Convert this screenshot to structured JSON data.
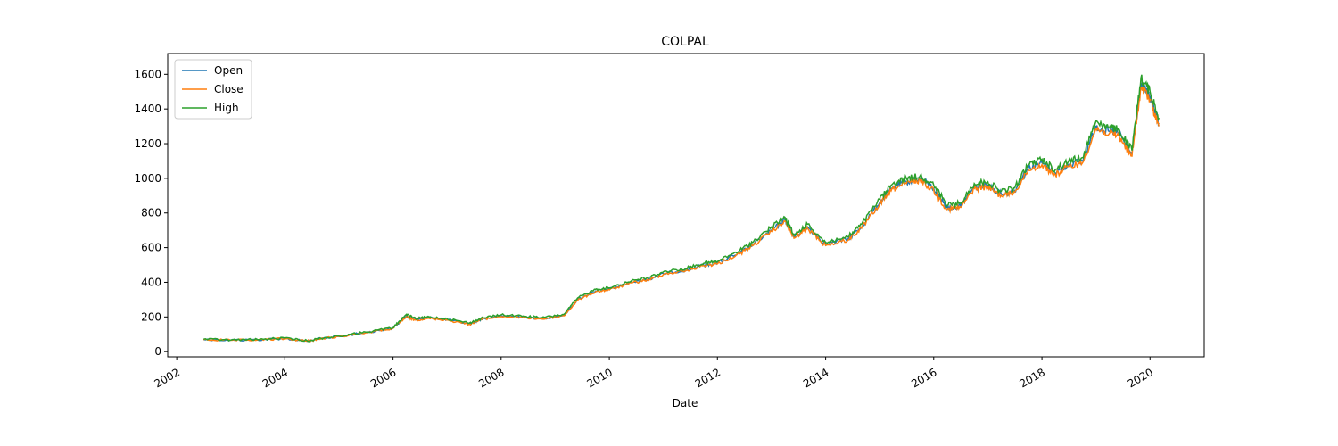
{
  "chart_data": {
    "type": "line",
    "title": "COLPAL",
    "xlabel": "Date",
    "ylabel": "",
    "x_ticks": [
      "2002",
      "2004",
      "2006",
      "2008",
      "2010",
      "2012",
      "2014",
      "2016",
      "2018",
      "2020"
    ],
    "y_ticks": [
      0,
      200,
      400,
      600,
      800,
      1000,
      1200,
      1400,
      1600
    ],
    "xlim": [
      "2001-11-01",
      "2021-01-01"
    ],
    "ylim": [
      -30,
      1720
    ],
    "grid": false,
    "legend": "top-left",
    "x": [
      "2002-07-01",
      "2003-01-01",
      "2003-07-01",
      "2004-01-01",
      "2004-06-01",
      "2004-09-01",
      "2005-01-01",
      "2005-07-01",
      "2006-01-01",
      "2006-04-01",
      "2006-06-01",
      "2006-09-01",
      "2007-01-01",
      "2007-06-01",
      "2007-09-01",
      "2008-01-01",
      "2008-06-01",
      "2008-10-01",
      "2009-03-01",
      "2009-06-01",
      "2009-10-01",
      "2010-01-01",
      "2010-06-01",
      "2010-10-01",
      "2011-01-01",
      "2011-06-01",
      "2011-10-01",
      "2012-01-01",
      "2012-06-01",
      "2012-09-01",
      "2013-01-01",
      "2013-04-01",
      "2013-06-01",
      "2013-09-01",
      "2014-01-01",
      "2014-06-01",
      "2014-09-01",
      "2015-01-01",
      "2015-04-01",
      "2015-07-01",
      "2015-10-01",
      "2016-01-01",
      "2016-04-01",
      "2016-07-01",
      "2016-10-01",
      "2017-01-01",
      "2017-04-01",
      "2017-07-01",
      "2017-10-01",
      "2018-01-01",
      "2018-04-01",
      "2018-07-01",
      "2018-10-01",
      "2019-01-01",
      "2019-04-01",
      "2019-06-01",
      "2019-09-01",
      "2019-11-01",
      "2020-01-01",
      "2020-03-01"
    ],
    "series": [
      {
        "name": "Open",
        "color": "#1f77b4",
        "values": [
          70,
          66,
          68,
          76,
          60,
          75,
          88,
          110,
          135,
          205,
          185,
          195,
          185,
          160,
          190,
          205,
          200,
          190,
          210,
          300,
          350,
          360,
          400,
          420,
          450,
          470,
          500,
          510,
          570,
          620,
          700,
          760,
          660,
          720,
          620,
          650,
          720,
          860,
          950,
          980,
          1000,
          940,
          830,
          840,
          950,
          960,
          910,
          930,
          1060,
          1090,
          1030,
          1080,
          1100,
          1300,
          1270,
          1260,
          1140,
          1540,
          1470,
          1320
        ]
      },
      {
        "name": "Close",
        "color": "#ff7f0e",
        "values": [
          69,
          65,
          67,
          75,
          60,
          74,
          87,
          109,
          134,
          200,
          182,
          192,
          182,
          158,
          188,
          202,
          197,
          188,
          207,
          296,
          346,
          356,
          396,
          416,
          446,
          466,
          496,
          506,
          565,
          615,
          693,
          752,
          654,
          712,
          612,
          644,
          712,
          850,
          940,
          970,
          990,
          930,
          820,
          832,
          940,
          950,
          900,
          920,
          1048,
          1078,
          1020,
          1068,
          1088,
          1285,
          1258,
          1246,
          1128,
          1525,
          1455,
          1300
        ]
      },
      {
        "name": "High",
        "color": "#2ca02c",
        "values": [
          72,
          67,
          70,
          78,
          62,
          77,
          90,
          113,
          138,
          215,
          190,
          200,
          190,
          165,
          195,
          212,
          205,
          195,
          215,
          310,
          360,
          368,
          410,
          430,
          460,
          480,
          510,
          520,
          585,
          635,
          720,
          775,
          670,
          735,
          630,
          662,
          735,
          880,
          970,
          1000,
          1015,
          960,
          845,
          855,
          970,
          980,
          925,
          945,
          1080,
          1110,
          1050,
          1100,
          1120,
          1330,
          1290,
          1285,
          1160,
          1580,
          1500,
          1350
        ]
      }
    ]
  }
}
